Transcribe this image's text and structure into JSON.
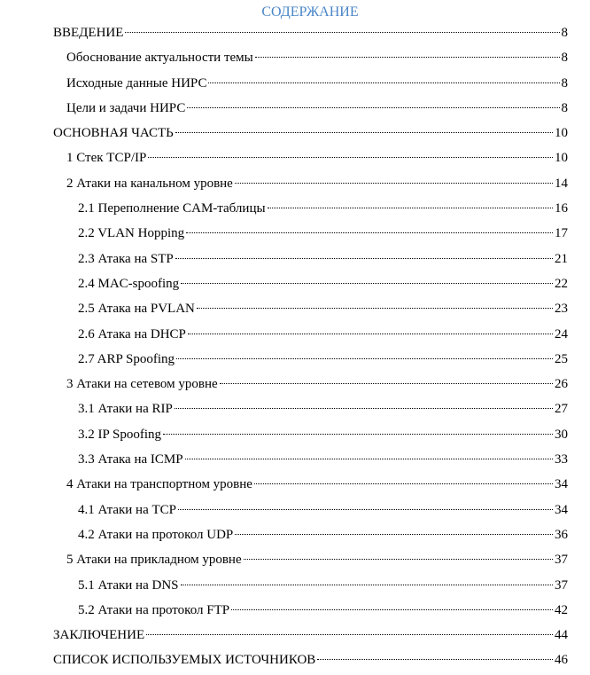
{
  "title": "СОДЕРЖАНИЕ",
  "accent_color": "#4a86c8",
  "entries": [
    {
      "label": "ВВЕДЕНИЕ",
      "page": "8",
      "level": 0
    },
    {
      "label": "Обоснование актуальности темы",
      "page": "8",
      "level": 1
    },
    {
      "label": "Исходные данные НИРС",
      "page": "8",
      "level": 1
    },
    {
      "label": "Цели и задачи НИРС",
      "page": "8",
      "level": 1
    },
    {
      "label": "ОСНОВНАЯ ЧАСТЬ",
      "page": "10",
      "level": 0
    },
    {
      "label": "1 Стек TCP/IP",
      "page": "10",
      "level": 1
    },
    {
      "label": "2 Атаки на канальном уровне",
      "page": "14",
      "level": 1
    },
    {
      "label": "2.1 Переполнение CAM-таблицы",
      "page": "16",
      "level": 2
    },
    {
      "label": "2.2 VLAN Hopping",
      "page": "17",
      "level": 2
    },
    {
      "label": "2.3 Атака на STP",
      "page": "21",
      "level": 2
    },
    {
      "label": "2.4 MAC-spoofing",
      "page": "22",
      "level": 2
    },
    {
      "label": "2.5 Атака на PVLAN",
      "page": "23",
      "level": 2
    },
    {
      "label": "2.6 Атака на DHCP",
      "page": "24",
      "level": 2
    },
    {
      "label": "2.7 ARP Spoofing",
      "page": "25",
      "level": 2
    },
    {
      "label": "3 Атаки на сетевом уровне",
      "page": "26",
      "level": 1
    },
    {
      "label": "3.1 Атаки на RIP",
      "page": "27",
      "level": 2
    },
    {
      "label": "3.2 IP Spoofing",
      "page": "30",
      "level": 2
    },
    {
      "label": "3.3 Атака на ICMP",
      "page": "33",
      "level": 2
    },
    {
      "label": "4 Атаки на транспортном уровне",
      "page": "34",
      "level": 1
    },
    {
      "label": "4.1 Атаки на TCP",
      "page": "34",
      "level": 2
    },
    {
      "label": "4.2 Атаки на протокол UDP",
      "page": "36",
      "level": 2
    },
    {
      "label": "5 Атаки на прикладном уровне",
      "page": "37",
      "level": 1
    },
    {
      "label": "5.1 Атаки на DNS",
      "page": "37",
      "level": 2
    },
    {
      "label": "5.2 Атаки на протокол FTP",
      "page": "42",
      "level": 2
    },
    {
      "label": "ЗАКЛЮЧЕНИЕ",
      "page": "44",
      "level": 0
    },
    {
      "label": "СПИСОК ИСПОЛЬЗУЕМЫХ ИСТОЧНИКОВ",
      "page": "46",
      "level": 0
    }
  ]
}
